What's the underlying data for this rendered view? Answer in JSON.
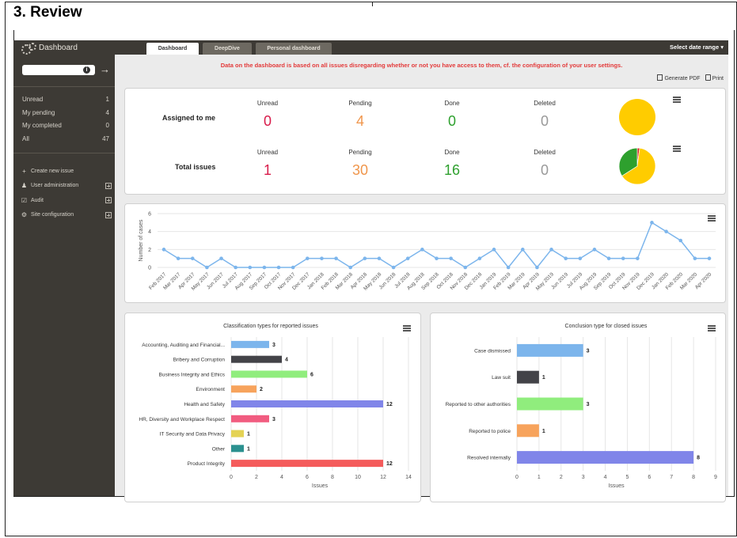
{
  "section_title": "3. Review",
  "sidebar": {
    "title": "Dashboard",
    "search_value": "",
    "counts": [
      {
        "label": "Unread",
        "value": "1"
      },
      {
        "label": "My pending",
        "value": "4"
      },
      {
        "label": "My completed",
        "value": "0"
      },
      {
        "label": "All",
        "value": "47"
      }
    ],
    "menu": [
      {
        "label": "Create new issue",
        "icon": "+",
        "icon_name": "plus-icon",
        "expandable": false
      },
      {
        "label": "User administration",
        "icon": "♟",
        "icon_name": "user-icon",
        "expandable": true
      },
      {
        "label": "Audit",
        "icon": "☑",
        "icon_name": "checkbox-icon",
        "expandable": true
      },
      {
        "label": "Site configuration",
        "icon": "⚙",
        "icon_name": "gear-icon",
        "expandable": true
      }
    ]
  },
  "tabs": [
    {
      "label": "Dashboard",
      "active": true
    },
    {
      "label": "DeepDive",
      "active": false
    },
    {
      "label": "Personal dashboard",
      "active": false
    }
  ],
  "date_range_label": "Select date range ▾",
  "warning": "Data on the dashboard is based on all issues disregarding whether or not you have access to them, cf. the configuration of your user settings.",
  "actions": {
    "pdf": "Generate PDF",
    "print": "Print"
  },
  "summary": {
    "rows": [
      {
        "title": "Assigned to me",
        "stats": [
          {
            "label": "Unread",
            "value": "0",
            "color": "#d81b4a"
          },
          {
            "label": "Pending",
            "value": "4",
            "color": "#f0964c"
          },
          {
            "label": "Done",
            "value": "0",
            "color": "#2ea02e"
          },
          {
            "label": "Deleted",
            "value": "0",
            "color": "#999999"
          }
        ],
        "pie": [
          0,
          4,
          0
        ]
      },
      {
        "title": "Total issues",
        "stats": [
          {
            "label": "Unread",
            "value": "1",
            "color": "#d81b4a"
          },
          {
            "label": "Pending",
            "value": "30",
            "color": "#f0964c"
          },
          {
            "label": "Done",
            "value": "16",
            "color": "#2ea02e"
          },
          {
            "label": "Deleted",
            "value": "0",
            "color": "#999999"
          }
        ],
        "pie": [
          1,
          30,
          16
        ]
      }
    ],
    "pie_colors": [
      "#d81b1b",
      "#ffcc00",
      "#2ea02e"
    ]
  },
  "chart_data": [
    {
      "type": "line",
      "title": "",
      "ylabel": "Number of cases",
      "ylim": [
        0,
        6
      ],
      "yticks": [
        0,
        2,
        4,
        6
      ],
      "color": "#7cb5ec",
      "x": [
        "Feb 2017",
        "Mar 2017",
        "Apr 2017",
        "May 2017",
        "Jun 2017",
        "Jul 2017",
        "Aug 2017",
        "Sep 2017",
        "Oct 2017",
        "Nov 2017",
        "Dec 2017",
        "Jan 2018",
        "Feb 2018",
        "Mar 2018",
        "Apr 2018",
        "May 2018",
        "Jun 2018",
        "Jul 2018",
        "Aug 2018",
        "Sep 2018",
        "Oct 2018",
        "Nov 2018",
        "Dec 2018",
        "Jan 2019",
        "Feb 2019",
        "Mar 2019",
        "Apr 2019",
        "May 2019",
        "Jun 2019",
        "Jul 2019",
        "Aug 2019",
        "Sep 2019",
        "Oct 2019",
        "Nov 2019",
        "Dec 2019",
        "Jan 2020",
        "Feb 2020",
        "Mar 2020",
        "Apr 2020"
      ],
      "values": [
        2,
        1,
        1,
        0,
        1,
        0,
        0,
        0,
        0,
        0,
        1,
        1,
        1,
        0,
        1,
        1,
        0,
        1,
        2,
        1,
        1,
        0,
        1,
        2,
        0,
        2,
        0,
        2,
        1,
        1,
        2,
        1,
        1,
        1,
        5,
        4,
        3,
        1,
        1
      ]
    },
    {
      "type": "bar",
      "orientation": "horizontal",
      "title": "Classification types for reported issues",
      "xlabel": "Issues",
      "xlim": [
        0,
        14
      ],
      "xticks": [
        0,
        2,
        4,
        6,
        8,
        10,
        12,
        14
      ],
      "categories": [
        "Accounting, Auditing and Financial...",
        "Bribery and Corruption",
        "Business Integrity and Ethics",
        "Environment",
        "Health and Safety",
        "HR, Diversity and Workplace Respect",
        "IT Security and Data Privacy",
        "Other",
        "Product Integrity"
      ],
      "values": [
        3,
        4,
        6,
        2,
        12,
        3,
        1,
        1,
        12
      ],
      "colors": [
        "#7cb5ec",
        "#434348",
        "#90ed7d",
        "#f7a35c",
        "#8085e9",
        "#f15c80",
        "#e4d354",
        "#2b908f",
        "#f45b5b"
      ]
    },
    {
      "type": "bar",
      "orientation": "horizontal",
      "title": "Conclusion type for closed issues",
      "xlabel": "Issues",
      "xlim": [
        0,
        9
      ],
      "xticks": [
        0,
        1,
        2,
        3,
        4,
        5,
        6,
        7,
        8,
        9
      ],
      "categories": [
        "Case dismissed",
        "Law suit",
        "Reported to other authorities",
        "Reported to police",
        "Resolved internally"
      ],
      "values": [
        3,
        1,
        3,
        1,
        8
      ],
      "colors": [
        "#7cb5ec",
        "#434348",
        "#90ed7d",
        "#f7a35c",
        "#8085e9"
      ]
    }
  ]
}
